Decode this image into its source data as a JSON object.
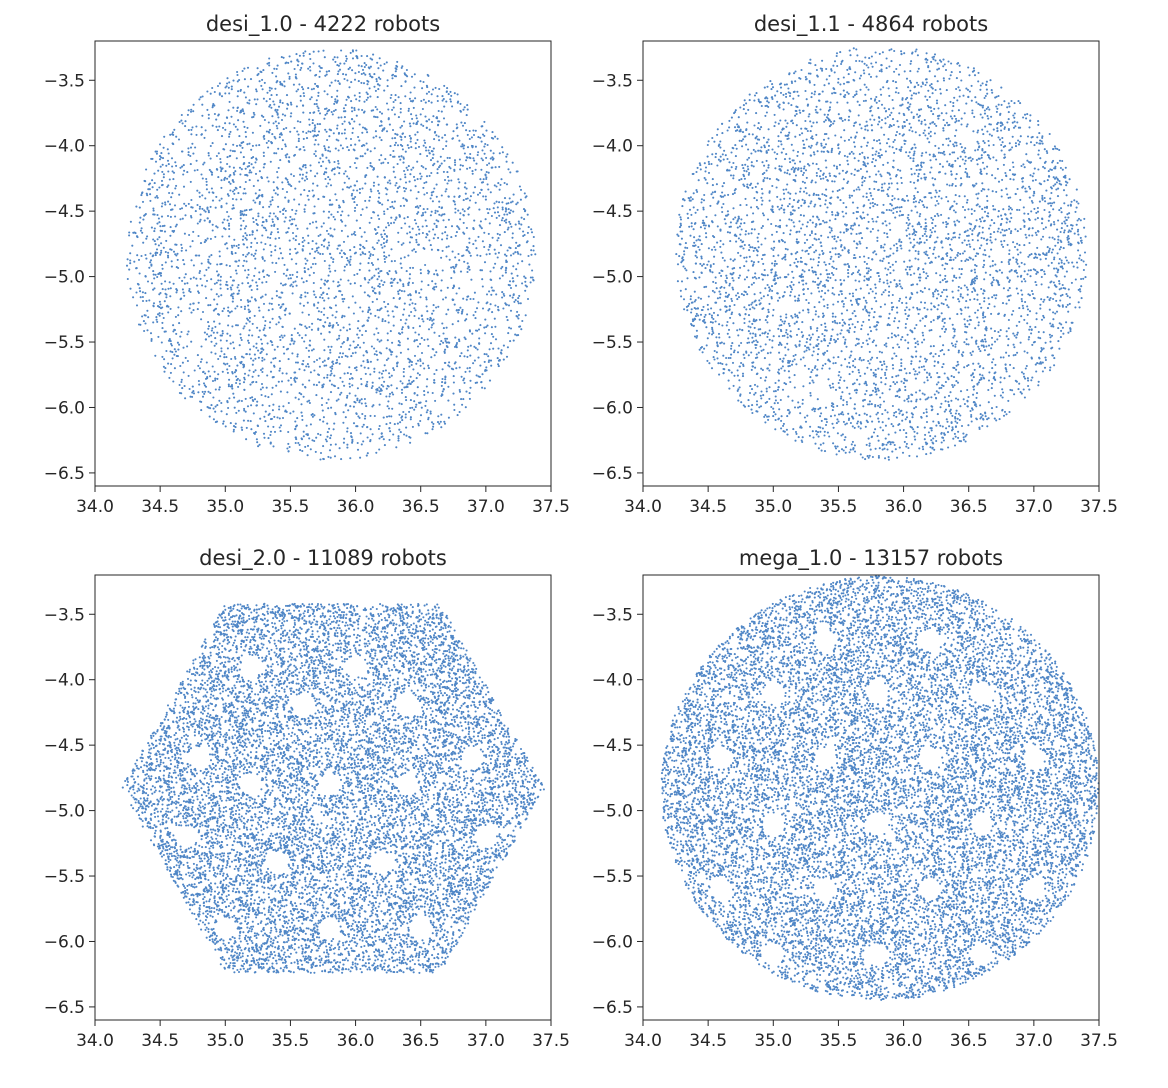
{
  "figure": {
    "background": "#ffffff",
    "marker_color": "#4f86c6",
    "axis_color": "#262626"
  },
  "chart_data": [
    {
      "type": "scatter",
      "title": "desi_1.0 - 4222 robots",
      "xlabel": "",
      "ylabel": "",
      "xlim": [
        34.0,
        37.5
      ],
      "ylim": [
        -6.6,
        -3.2
      ],
      "xticks": [
        "34.0",
        "34.5",
        "35.0",
        "35.5",
        "36.0",
        "36.5",
        "37.0",
        "37.5"
      ],
      "yticks": [
        "-3.5",
        "-4.0",
        "-4.5",
        "-5.0",
        "-5.5",
        "-6.0",
        "-6.5"
      ],
      "grid": false,
      "shape": "circle",
      "center": [
        35.81,
        -4.83
      ],
      "radius": [
        1.57,
        1.57
      ],
      "marker_count": 4222,
      "marker_color": "#4f86c6",
      "voids": []
    },
    {
      "type": "scatter",
      "title": "desi_1.1 - 4864 robots",
      "xlabel": "",
      "ylabel": "",
      "xlim": [
        34.0,
        37.5
      ],
      "ylim": [
        -6.6,
        -3.2
      ],
      "xticks": [
        "34.0",
        "34.5",
        "35.0",
        "35.5",
        "36.0",
        "36.5",
        "37.0",
        "37.5"
      ],
      "yticks": [
        "-3.5",
        "-4.0",
        "-4.5",
        "-5.0",
        "-5.5",
        "-6.0",
        "-6.5"
      ],
      "grid": false,
      "shape": "circle",
      "center": [
        35.83,
        -4.82
      ],
      "radius": [
        1.58,
        1.58
      ],
      "marker_count": 4864,
      "marker_color": "#4f86c6",
      "voids": []
    },
    {
      "type": "scatter",
      "title": "desi_2.0 - 11089 robots",
      "xlabel": "",
      "ylabel": "",
      "xlim": [
        34.0,
        37.5
      ],
      "ylim": [
        -6.6,
        -3.2
      ],
      "xticks": [
        "34.0",
        "34.5",
        "35.0",
        "35.5",
        "36.0",
        "36.5",
        "37.0",
        "37.5"
      ],
      "yticks": [
        "-3.5",
        "-4.0",
        "-4.5",
        "-5.0",
        "-5.5",
        "-6.0",
        "-6.5"
      ],
      "grid": false,
      "shape": "hexagon",
      "hexagon_vertices": [
        [
          34.2,
          -4.83
        ],
        [
          35.0,
          -3.42
        ],
        [
          36.65,
          -3.42
        ],
        [
          37.45,
          -4.83
        ],
        [
          36.65,
          -6.24
        ],
        [
          35.0,
          -6.24
        ]
      ],
      "marker_count": 11089,
      "marker_color": "#4f86c6",
      "voids": [
        [
          35.2,
          -3.9
        ],
        [
          35.6,
          -4.2
        ],
        [
          36.0,
          -3.9
        ],
        [
          36.4,
          -4.2
        ],
        [
          35.8,
          -4.8
        ],
        [
          35.2,
          -4.8
        ],
        [
          36.4,
          -4.8
        ],
        [
          34.8,
          -4.6
        ],
        [
          36.9,
          -4.6
        ],
        [
          35.4,
          -5.4
        ],
        [
          36.2,
          -5.4
        ],
        [
          35.0,
          -5.9
        ],
        [
          35.8,
          -5.9
        ],
        [
          36.5,
          -5.9
        ],
        [
          34.7,
          -5.2
        ],
        [
          37.0,
          -5.2
        ]
      ]
    },
    {
      "type": "scatter",
      "title": "mega_1.0 - 13157 robots",
      "xlabel": "",
      "ylabel": "",
      "xlim": [
        34.0,
        37.5
      ],
      "ylim": [
        -6.6,
        -3.2
      ],
      "xticks": [
        "34.0",
        "34.5",
        "35.0",
        "35.5",
        "36.0",
        "36.5",
        "37.0",
        "37.5"
      ],
      "yticks": [
        "-3.5",
        "-4.0",
        "-4.5",
        "-5.0",
        "-5.5",
        "-6.0",
        "-6.5"
      ],
      "grid": false,
      "shape": "circle",
      "center": [
        35.82,
        -4.83
      ],
      "radius": [
        1.68,
        1.62
      ],
      "marker_count": 13157,
      "marker_color": "#4f86c6",
      "voids": [
        [
          35.4,
          -3.7
        ],
        [
          36.2,
          -3.7
        ],
        [
          35.0,
          -4.1
        ],
        [
          35.8,
          -4.1
        ],
        [
          36.6,
          -4.1
        ],
        [
          34.6,
          -4.6
        ],
        [
          35.4,
          -4.6
        ],
        [
          36.2,
          -4.6
        ],
        [
          37.0,
          -4.6
        ],
        [
          35.0,
          -5.1
        ],
        [
          35.8,
          -5.1
        ],
        [
          36.6,
          -5.1
        ],
        [
          34.6,
          -5.6
        ],
        [
          35.4,
          -5.6
        ],
        [
          36.2,
          -5.6
        ],
        [
          37.0,
          -5.6
        ],
        [
          35.0,
          -6.1
        ],
        [
          35.8,
          -6.1
        ],
        [
          36.6,
          -6.1
        ]
      ]
    }
  ]
}
